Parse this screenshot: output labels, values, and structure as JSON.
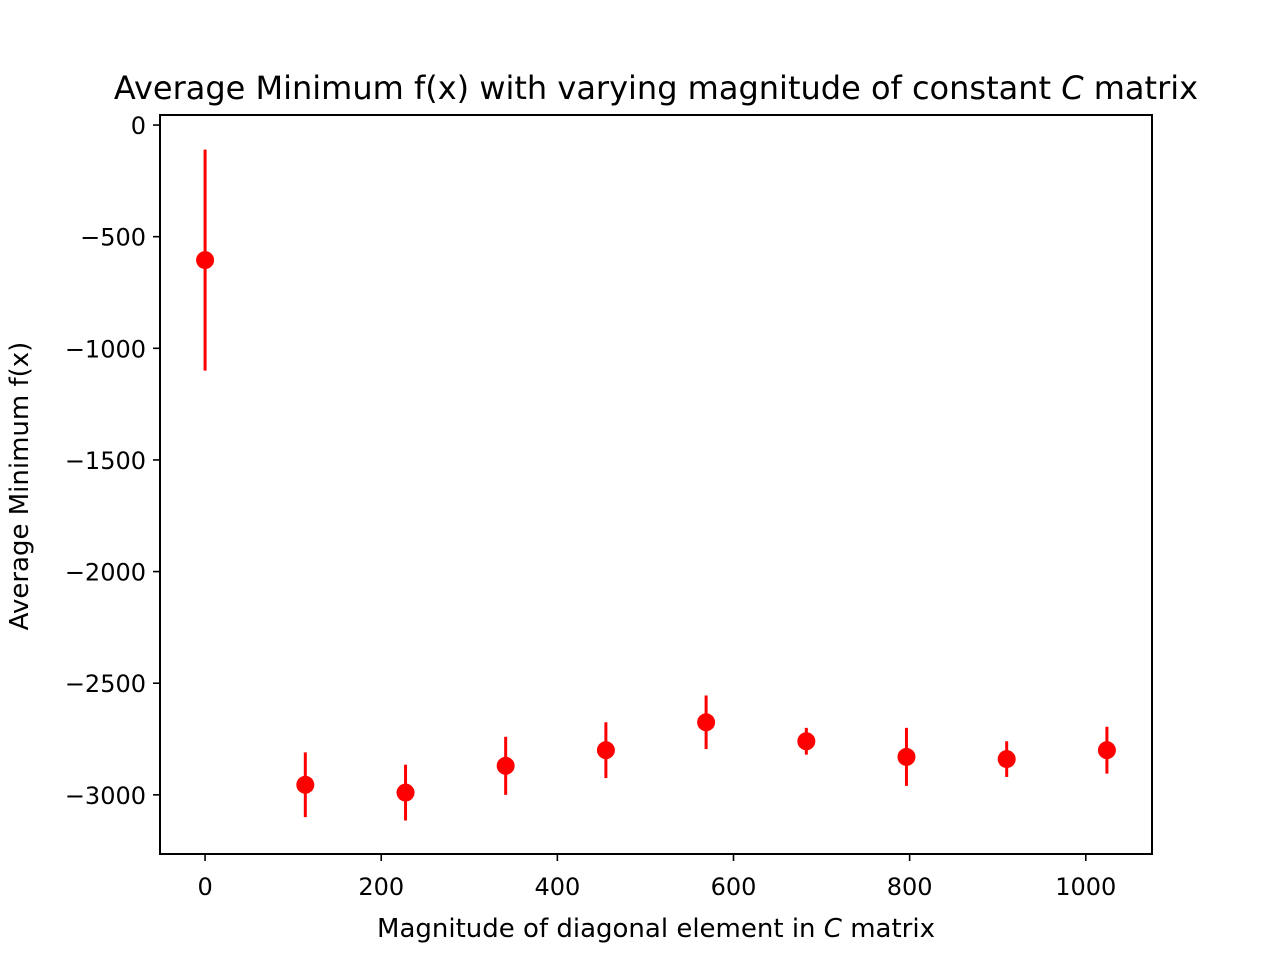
{
  "chart_data": {
    "type": "scatter",
    "title": {
      "prefix": "Average Minimum f(x) with varying magnitude of constant ",
      "italic": "C",
      "suffix": " matrix"
    },
    "xlabel": {
      "prefix": "Magnitude of diagonal element in ",
      "italic": "C",
      "suffix": " matrix"
    },
    "ylabel": "Average Minimum f(x)",
    "xlim": [
      -51.2,
      1075.2
    ],
    "ylim": [
      -3265,
      45
    ],
    "xticks": [
      0,
      200,
      400,
      600,
      800,
      1000
    ],
    "yticks": [
      0,
      -500,
      -1000,
      -1500,
      -2000,
      -2500,
      -3000
    ],
    "xtick_labels": [
      "0",
      "200",
      "400",
      "600",
      "800",
      "1000"
    ],
    "ytick_labels": [
      "0",
      "−500",
      "−1000",
      "−1500",
      "−2000",
      "−2500",
      "−3000"
    ],
    "color": "#ff0000",
    "grid": false,
    "series": [
      {
        "x": [
          0,
          113.8,
          227.6,
          341.3,
          455.1,
          568.9,
          682.7,
          796.4,
          910.2,
          1024
        ],
        "y": [
          -605,
          -2955,
          -2990,
          -2870,
          -2800,
          -2675,
          -2760,
          -2830,
          -2840,
          -2800
        ],
        "yerr": [
          495,
          145,
          125,
          130,
          125,
          120,
          60,
          130,
          80,
          105
        ]
      }
    ]
  }
}
